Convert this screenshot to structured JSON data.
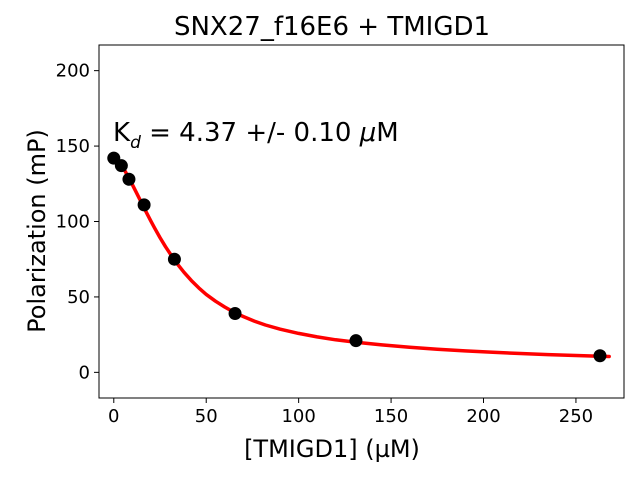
{
  "chart_data": {
    "type": "scatter",
    "title": "SNX27_f16E6 + TMIGD1",
    "xlabel": "[TMIGD1] (µM)",
    "ylabel": "Polarization (mP)",
    "xlim": [
      -8,
      276
    ],
    "ylim": [
      -17,
      217
    ],
    "x_ticks": [
      0,
      50,
      100,
      150,
      200,
      250
    ],
    "y_ticks": [
      0,
      50,
      100,
      150,
      200
    ],
    "annotation": {
      "prefix": "K",
      "subscript": "d",
      "rest": " = 4.37 +/- 0.10 ",
      "mu": "μ",
      "unit": "M"
    },
    "series": [
      {
        "type": "scatter",
        "color": "#000000",
        "marker": "circle",
        "points": [
          {
            "x": 0,
            "y": 142
          },
          {
            "x": 4.1,
            "y": 137
          },
          {
            "x": 8.2,
            "y": 128
          },
          {
            "x": 16.4,
            "y": 111
          },
          {
            "x": 32.8,
            "y": 75
          },
          {
            "x": 65.6,
            "y": 39
          },
          {
            "x": 131,
            "y": 21
          },
          {
            "x": 263,
            "y": 11
          }
        ]
      },
      {
        "type": "line",
        "color": "#ff0000",
        "x": [
          0,
          2,
          4,
          6,
          8,
          10,
          12,
          14,
          16,
          18,
          20,
          22,
          25,
          28,
          31,
          34,
          38,
          42,
          46,
          50,
          55,
          60,
          65,
          70,
          76,
          82,
          90,
          100,
          110,
          120,
          131,
          145,
          160,
          175,
          190,
          205,
          220,
          235,
          250,
          263,
          268
        ],
        "y": [
          144.0,
          141.1,
          137.6,
          133.6,
          129.2,
          124.5,
          119.7,
          114.8,
          109.9,
          105.1,
          100.4,
          95.8,
          89.3,
          83.3,
          77.7,
          72.5,
          66.3,
          60.8,
          56.0,
          51.7,
          47.2,
          43.3,
          39.9,
          37.0,
          34.0,
          31.4,
          28.6,
          25.8,
          23.5,
          21.6,
          20.0,
          18.2,
          16.6,
          15.3,
          14.2,
          13.3,
          12.5,
          11.8,
          11.2,
          10.7,
          10.5
        ]
      }
    ]
  }
}
